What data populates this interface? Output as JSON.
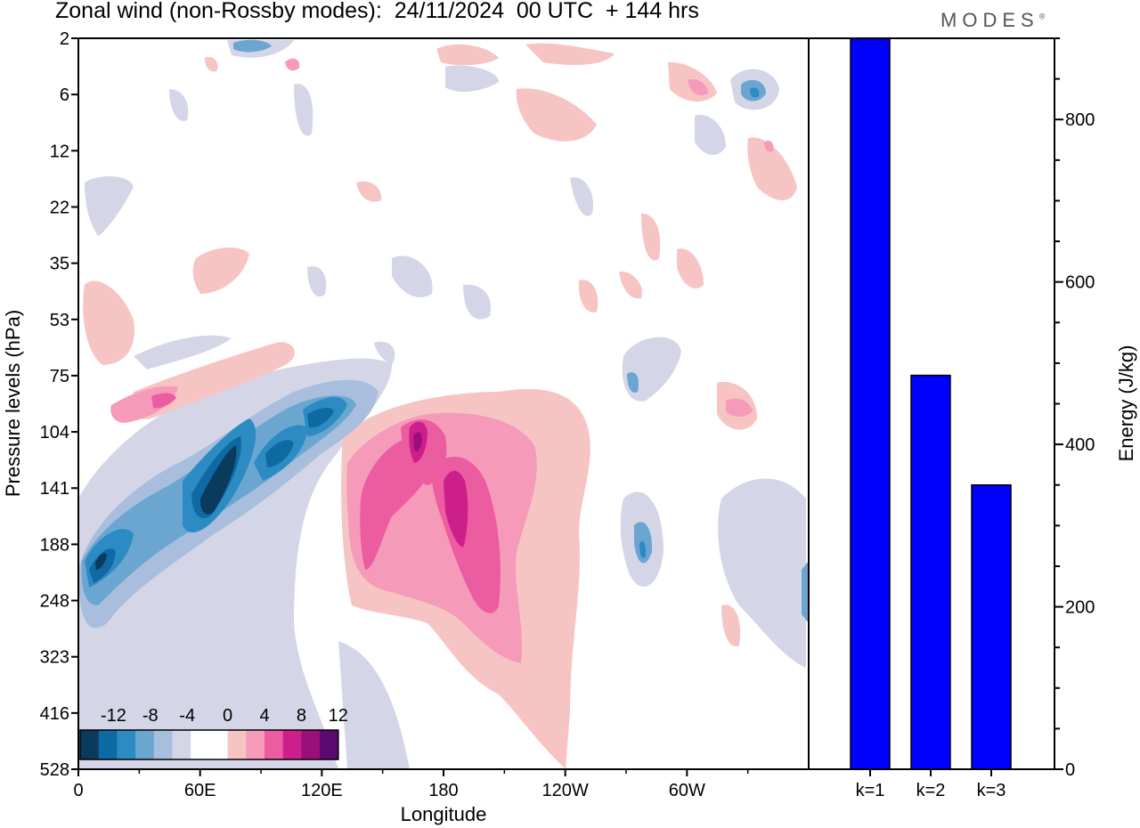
{
  "header": {
    "title": "Zonal wind (non-Rossby modes):  24/11/2024  00 UTC  + 144 hrs",
    "brand": "MODES",
    "brand_mark": "®"
  },
  "chart_data": [
    {
      "type": "heatmap",
      "xlabel": "Longitude",
      "ylabel": "Pressure levels (hPa)",
      "x_ticks": [
        "0",
        "60E",
        "120E",
        "180",
        "120W",
        "60W"
      ],
      "y_ticks": [
        "2",
        "6",
        "12",
        "22",
        "35",
        "53",
        "75",
        "104",
        "141",
        "188",
        "248",
        "323",
        "416",
        "528"
      ],
      "colorbar": {
        "labels": [
          "-12",
          "-8",
          "-4",
          "0",
          "4",
          "8",
          "12"
        ],
        "colors": [
          "#0a3a5c",
          "#0f6aa3",
          "#2d8bc4",
          "#6aa6d0",
          "#a8bedc",
          "#d4d6e8",
          "#ffffff",
          "#ffffff",
          "#f7c4c4",
          "#f59ab8",
          "#ec5ca0",
          "#cd1f8c",
          "#9a0f7a",
          "#5a0a6e"
        ]
      },
      "features": [
        {
          "sign": "negative",
          "peak": -12,
          "lon_center": 72,
          "level": "141"
        },
        {
          "sign": "negative",
          "peak": -10,
          "lon_center": 8,
          "level": "188"
        },
        {
          "sign": "negative",
          "peak": -10,
          "lon_center": 100,
          "level": "120"
        },
        {
          "sign": "positive",
          "peak": 10,
          "lon_center": 168,
          "level": "115"
        },
        {
          "sign": "positive",
          "peak": 10,
          "lon_center": 186,
          "level": "150"
        },
        {
          "sign": "positive",
          "peak": 6,
          "lon_center": 40,
          "level": "95"
        }
      ]
    },
    {
      "type": "bar",
      "categories": [
        "k=1",
        "k=2",
        "k=3"
      ],
      "values": [
        900,
        485,
        350
      ],
      "ylabel": "Energy (J/kg)",
      "ylim": [
        0,
        900
      ],
      "y_ticks": [
        0,
        200,
        400,
        600,
        800
      ],
      "bar_color": "#0000ff"
    }
  ]
}
